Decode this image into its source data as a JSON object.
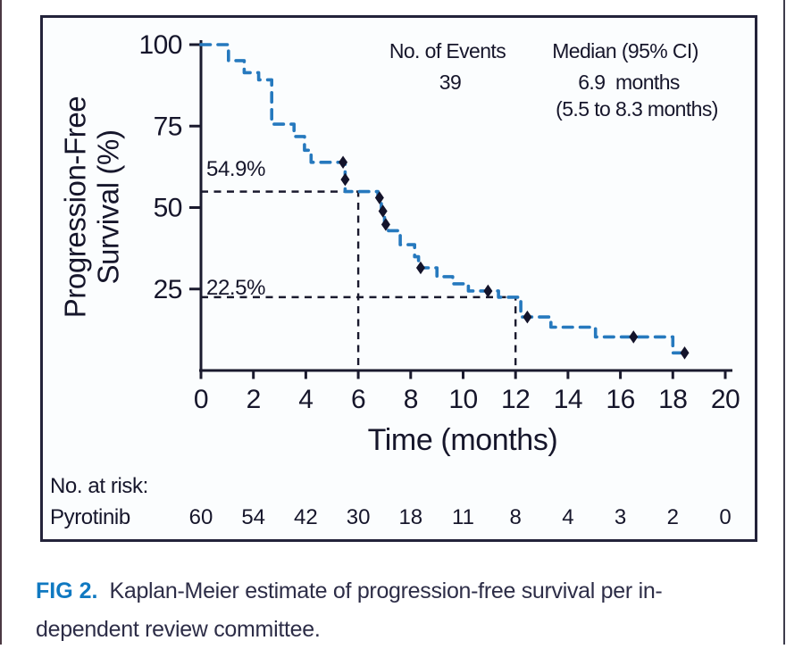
{
  "colors": {
    "curve": "#2679be",
    "censor_marks": "#14142b",
    "axis": "#1a1a2e",
    "reference_line": "#1a1a2e",
    "panel_border": "#23233a",
    "panel_background": "#fbfdfe",
    "fig_tag_blue": "#1079c1",
    "caption_text": "#2d2d47"
  },
  "chart_data": {
    "type": "line",
    "subtype": "kaplan-meier-step",
    "title": "",
    "xlabel": "Time (months)",
    "ylabel": "Progression-Free Survival (%)",
    "ylabel_lines": [
      "Progression-Free",
      "Survival (%)"
    ],
    "xlim": [
      0,
      20
    ],
    "ylim": [
      0,
      100
    ],
    "xticks": [
      0,
      2,
      4,
      6,
      8,
      10,
      12,
      14,
      16,
      18,
      20
    ],
    "yticks": [
      100,
      75,
      50,
      25
    ],
    "grid": false,
    "legend_position": "none",
    "series": [
      {
        "name": "Pyrotinib",
        "style": "dashed",
        "points": [
          [
            0,
            100
          ],
          [
            1.05,
            100
          ],
          [
            1.05,
            95.1
          ],
          [
            1.65,
            95.1
          ],
          [
            1.65,
            91.4
          ],
          [
            2.2,
            91.4
          ],
          [
            2.2,
            89.2
          ],
          [
            2.7,
            89.2
          ],
          [
            2.7,
            75.6
          ],
          [
            3.55,
            75.6
          ],
          [
            3.55,
            71.8
          ],
          [
            3.95,
            71.8
          ],
          [
            3.95,
            67.6
          ],
          [
            4.2,
            67.6
          ],
          [
            4.2,
            63.9
          ],
          [
            5.5,
            63.9
          ],
          [
            5.5,
            54.9
          ],
          [
            6.75,
            54.9
          ],
          [
            6.75,
            53
          ],
          [
            6.88,
            53
          ],
          [
            6.88,
            48.9
          ],
          [
            7,
            48.9
          ],
          [
            7,
            44.8
          ],
          [
            7.15,
            44.8
          ],
          [
            7.15,
            42.9
          ],
          [
            7.6,
            42.9
          ],
          [
            7.6,
            38.6
          ],
          [
            8.15,
            38.6
          ],
          [
            8.15,
            34.9
          ],
          [
            8.3,
            34.9
          ],
          [
            8.3,
            31.5
          ],
          [
            9,
            31.5
          ],
          [
            9,
            28.8
          ],
          [
            9.6,
            28.8
          ],
          [
            9.6,
            26.6
          ],
          [
            10.2,
            26.6
          ],
          [
            10.2,
            24.4
          ],
          [
            11.35,
            24.4
          ],
          [
            11.35,
            22.5
          ],
          [
            12.2,
            22.5
          ],
          [
            12.2,
            16.4
          ],
          [
            13.35,
            16.4
          ],
          [
            13.35,
            13.3
          ],
          [
            15.05,
            13.3
          ],
          [
            15.05,
            10.3
          ],
          [
            18,
            10.3
          ],
          [
            18,
            5.4
          ],
          [
            18.6,
            5.4
          ]
        ]
      }
    ],
    "censor_marks": [
      [
        5.42,
        63.9
      ],
      [
        5.5,
        58.6
      ],
      [
        6.81,
        53
      ],
      [
        6.94,
        48.9
      ],
      [
        7.05,
        44.8
      ],
      [
        8.38,
        31.5
      ],
      [
        10.95,
        24.4
      ],
      [
        12.45,
        16.4
      ],
      [
        16.5,
        10.3
      ],
      [
        18.45,
        5.4
      ]
    ],
    "reference_lines": [
      {
        "label": "54.9%",
        "time": 6,
        "survival": 54.9
      },
      {
        "label": "22.5%",
        "time": 12,
        "survival": 22.5
      }
    ],
    "stats": {
      "events_label": "No. of Events",
      "events_value": "39",
      "median_label": "Median (95% CI)",
      "median_value": "6.9  months",
      "median_ci": "(5.5 to 8.3 months)"
    },
    "at_risk": {
      "title": "No. at risk:",
      "row_label": "Pyrotinib",
      "values": [
        60,
        54,
        42,
        30,
        18,
        11,
        8,
        4,
        3,
        2,
        0
      ]
    }
  },
  "caption": {
    "tag": "FIG 2.",
    "lines": [
      "Kaplan-Meier estimate of progression-free survival per in-",
      "dependent review committee."
    ]
  }
}
